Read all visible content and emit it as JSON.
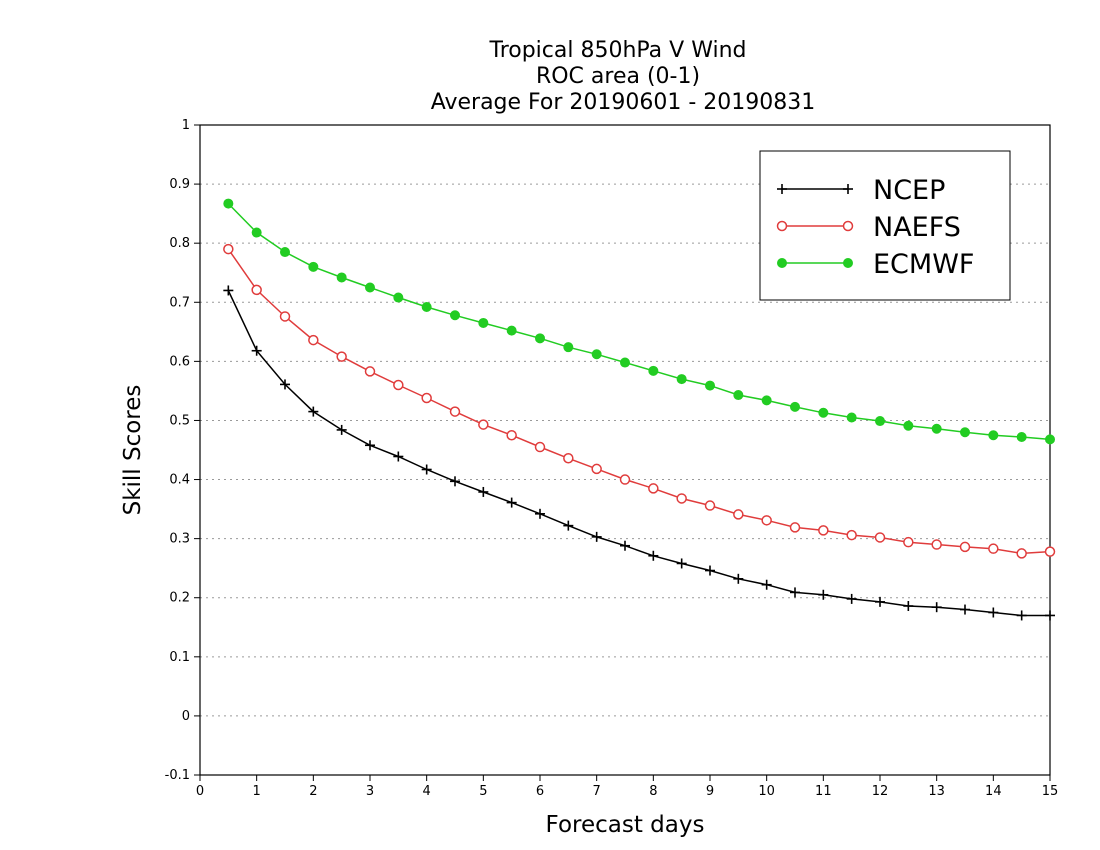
{
  "chart_data": {
    "type": "line",
    "title": [
      "Tropical 850hPa V Wind",
      "ROC area (0-1)",
      "Average For 20190601 - 20190831"
    ],
    "xlabel": "Forecast days",
    "ylabel": "Skill Scores",
    "xlim": [
      0,
      15
    ],
    "ylim": [
      -0.1,
      1
    ],
    "xticks": [
      0,
      1,
      2,
      3,
      4,
      5,
      6,
      7,
      8,
      9,
      10,
      11,
      12,
      13,
      14,
      15
    ],
    "xtick_labels": [
      "0",
      "1",
      "2",
      "3",
      "4",
      "5",
      "6",
      "7",
      "8",
      "9",
      "10",
      "11",
      "12",
      "13",
      "14",
      "15"
    ],
    "yticks": [
      -0.1,
      0,
      0.1,
      0.2,
      0.3,
      0.4,
      0.5,
      0.6,
      0.7,
      0.8,
      0.9,
      1
    ],
    "ytick_labels": [
      "-0.1",
      "0",
      "0.1",
      "0.2",
      "0.3",
      "0.4",
      "0.5",
      "0.6",
      "0.7",
      "0.8",
      "0.9",
      "1"
    ],
    "grid": "horizontal dotted",
    "legend_position": "top-right",
    "x": [
      0.5,
      1,
      1.5,
      2,
      2.5,
      3,
      3.5,
      4,
      4.5,
      5,
      5.5,
      6,
      6.5,
      7,
      7.5,
      8,
      8.5,
      9,
      9.5,
      10,
      10.5,
      11,
      11.5,
      12,
      12.5,
      13,
      13.5,
      14,
      14.5,
      15
    ],
    "series": [
      {
        "name": "NCEP",
        "marker": "plus",
        "color": "#000000",
        "values": [
          0.72,
          0.618,
          0.561,
          0.515,
          0.484,
          0.458,
          0.439,
          0.417,
          0.397,
          0.379,
          0.361,
          0.342,
          0.322,
          0.303,
          0.288,
          0.271,
          0.258,
          0.246,
          0.232,
          0.222,
          0.209,
          0.205,
          0.198,
          0.193,
          0.186,
          0.184,
          0.18,
          0.175,
          0.17,
          0.17
        ]
      },
      {
        "name": "NAEFS",
        "marker": "open-circle",
        "color": "#e03c3c",
        "values": [
          0.79,
          0.721,
          0.676,
          0.636,
          0.608,
          0.583,
          0.56,
          0.538,
          0.515,
          0.493,
          0.475,
          0.455,
          0.436,
          0.418,
          0.4,
          0.385,
          0.368,
          0.356,
          0.341,
          0.331,
          0.319,
          0.314,
          0.306,
          0.302,
          0.294,
          0.29,
          0.286,
          0.283,
          0.275,
          0.278
        ]
      },
      {
        "name": "ECMWF",
        "marker": "filled-circle",
        "color": "#22cc22",
        "values": [
          0.867,
          0.818,
          0.785,
          0.76,
          0.742,
          0.725,
          0.708,
          0.692,
          0.678,
          0.665,
          0.652,
          0.639,
          0.624,
          0.612,
          0.598,
          0.584,
          0.57,
          0.559,
          0.543,
          0.534,
          0.523,
          0.513,
          0.505,
          0.499,
          0.491,
          0.486,
          0.48,
          0.475,
          0.472,
          0.468
        ]
      }
    ]
  }
}
